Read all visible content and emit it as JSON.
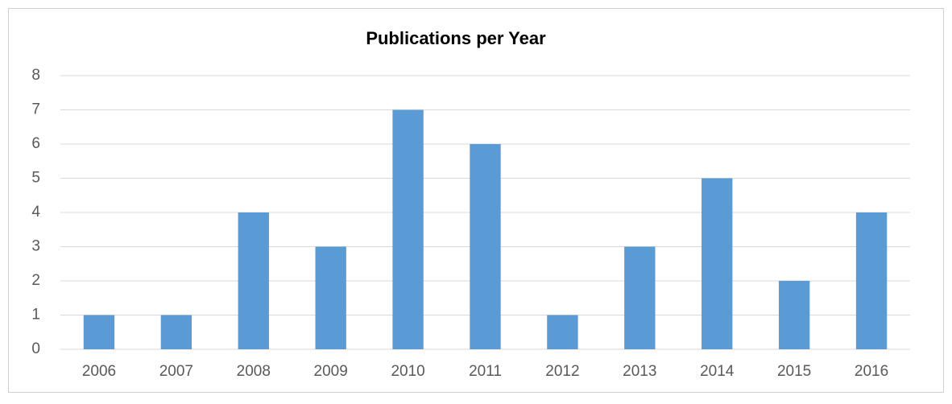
{
  "chart_data": {
    "type": "bar",
    "title": "Publications per Year",
    "categories": [
      "2006",
      "2007",
      "2008",
      "2009",
      "2010",
      "2011",
      "2012",
      "2013",
      "2014",
      "2015",
      "2016"
    ],
    "values": [
      1,
      1,
      4,
      3,
      7,
      6,
      1,
      3,
      5,
      2,
      4
    ],
    "color": "#5b9bd5",
    "ylim": [
      0,
      8
    ],
    "yticks": [
      0,
      1,
      2,
      3,
      4,
      5,
      6,
      7,
      8
    ],
    "grid": true
  }
}
